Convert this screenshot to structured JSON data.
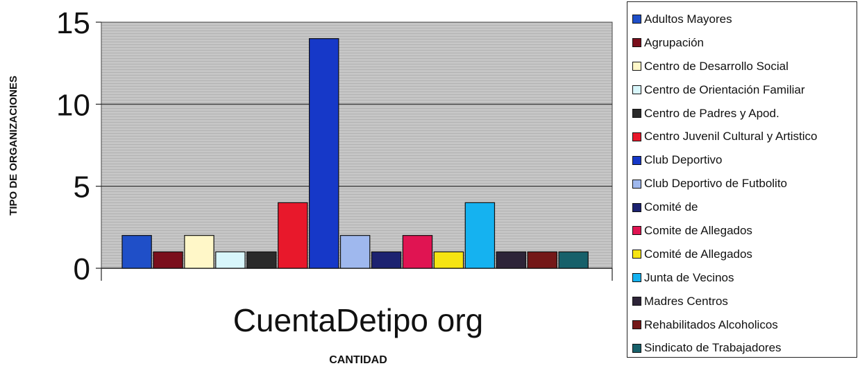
{
  "chart_data": {
    "type": "bar",
    "title": "",
    "category_label": "CuentaDetipo org",
    "xlabel": "CANTIDAD",
    "ylabel": "TIPO DE ORGANIZACIONES",
    "ylim": [
      0,
      15
    ],
    "yticks": [
      "0",
      "5",
      "10",
      "15"
    ],
    "grid": true,
    "legend_position": "right",
    "series": [
      {
        "name": "Adultos Mayores",
        "value": 2,
        "color": "#1f4fc8"
      },
      {
        "name": "Agrupación",
        "value": 1,
        "color": "#7a0f1c"
      },
      {
        "name": "Centro de Desarrollo Social",
        "value": 2,
        "color": "#fff7c8"
      },
      {
        "name": "Centro de Orientación Familiar",
        "value": 1,
        "color": "#d8f6fb"
      },
      {
        "name": "Centro de Padres y Apod.",
        "value": 1,
        "color": "#2a2a2a"
      },
      {
        "name": "Centro Juvenil Cultural y Artistico",
        "value": 4,
        "color": "#e8182b"
      },
      {
        "name": "Club Deportivo",
        "value": 14,
        "color": "#1638c8"
      },
      {
        "name": "Club Deportivo de Futbolito",
        "value": 2,
        "color": "#9fb8ee"
      },
      {
        "name": "Comité de",
        "value": 1,
        "color": "#1c2270"
      },
      {
        "name": "Comite de Allegados",
        "value": 2,
        "color": "#e01452"
      },
      {
        "name": "Comité de Allegados",
        "value": 1,
        "color": "#f6e412"
      },
      {
        "name": "Junta de Vecinos",
        "value": 4,
        "color": "#15b2f0"
      },
      {
        "name": "Madres Centros",
        "value": 1,
        "color": "#2d2438"
      },
      {
        "name": "Rehabilitados Alcoholicos",
        "value": 1,
        "color": "#741818"
      },
      {
        "name": "Sindicato de Trabajadores",
        "value": 1,
        "color": "#17606a"
      }
    ]
  }
}
